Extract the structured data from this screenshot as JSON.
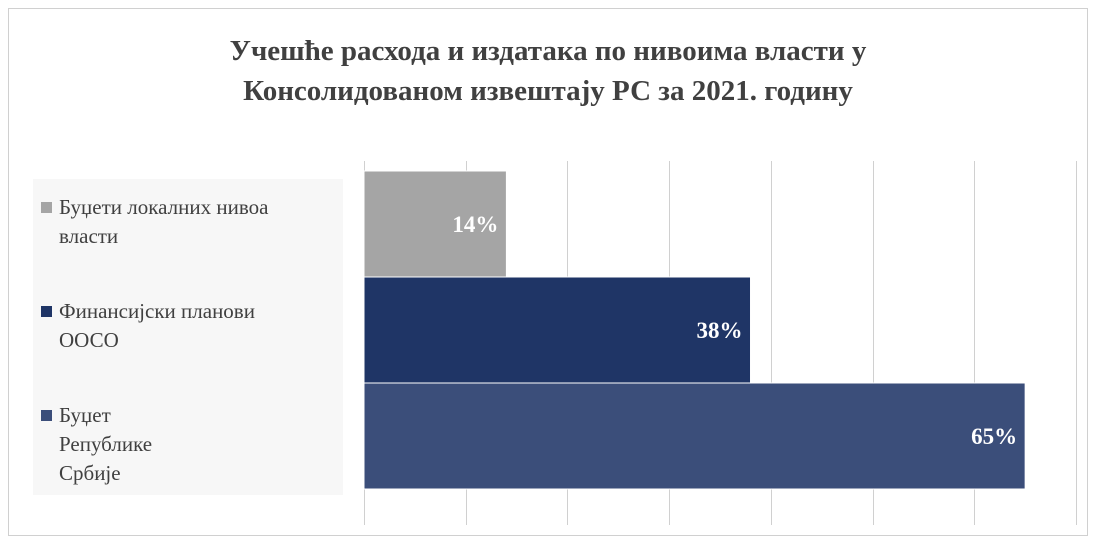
{
  "chart_data": {
    "type": "bar",
    "orientation": "horizontal",
    "title": "Учешће расхода и издатака по нивоима власти у Консолидованом извештају РС за 2021. годину",
    "title_lines": [
      "Учешће расхода и издатака по нивоима власти у",
      "Консолидованом извештају РС за 2021. годину"
    ],
    "categories": [
      "Буџети локалних нивоа власти",
      "Финансијски планови ООСО",
      "Буџет Републике Србије"
    ],
    "legend_lines": [
      [
        "Буџети локалних нивоа",
        "власти"
      ],
      [
        "Финансијски планови",
        "ООСО"
      ],
      [
        "Буџет",
        "Републике",
        "Србије"
      ]
    ],
    "values": [
      14,
      38,
      65
    ],
    "value_labels": [
      "14%",
      "38%",
      "65%"
    ],
    "colors": [
      "#a5a5a5",
      "#1f3566",
      "#3b4e7a"
    ],
    "xlim": [
      0,
      70
    ],
    "grid": true,
    "legend_position": "left"
  }
}
